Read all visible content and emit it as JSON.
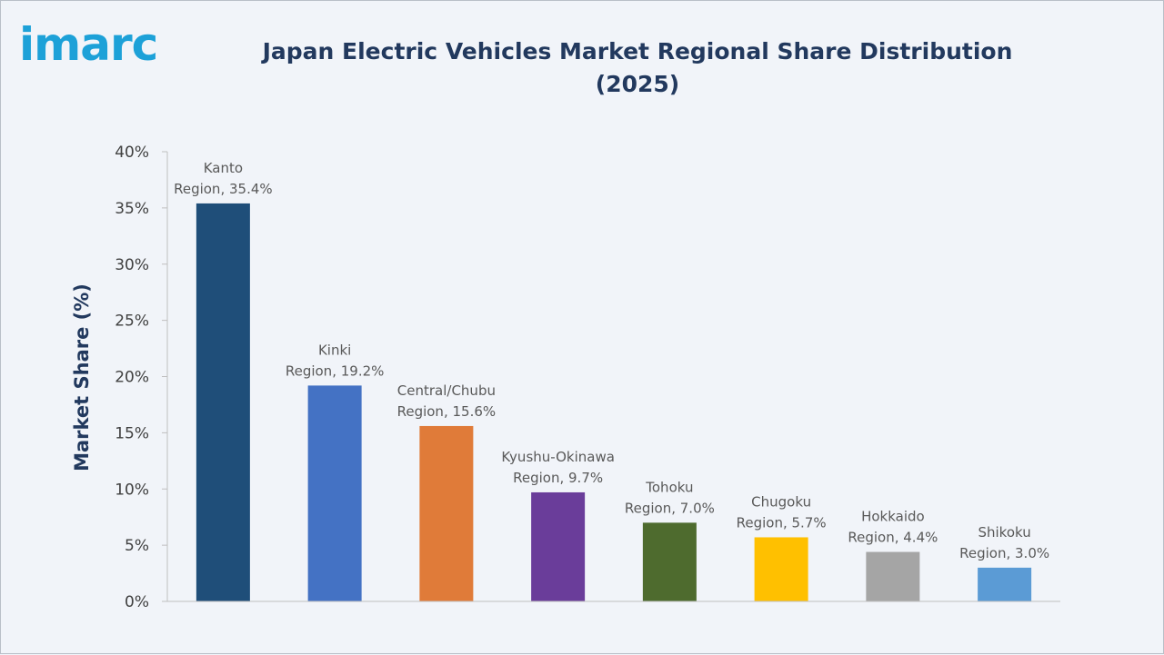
{
  "logo_text": "imarc",
  "title": "Japan Electric Vehicles Market Regional Share Distribution (2025)",
  "chart_data": {
    "type": "bar",
    "title": "Japan Electric Vehicles Market Regional Share Distribution (2025)",
    "xlabel": "",
    "ylabel": "Market Share (%)",
    "ylim": [
      0,
      40
    ],
    "yticks": [
      "0%",
      "5%",
      "10%",
      "15%",
      "20%",
      "25%",
      "30%",
      "35%",
      "40%"
    ],
    "grid": false,
    "legend": "none",
    "categories": [
      "Kanto Region",
      "Kinki Region",
      "Central/Chubu Region",
      "Kyushu-Okinawa Region",
      "Tohoku Region",
      "Chugoku Region",
      "Hokkaido Region",
      "Shikoku Region"
    ],
    "values": [
      35.4,
      19.2,
      15.6,
      9.7,
      7.0,
      5.7,
      4.4,
      3.0
    ],
    "label_lines": [
      [
        "Kanto",
        "Region, 35.4%"
      ],
      [
        "Kinki",
        "Region, 19.2%"
      ],
      [
        "Central/Chubu",
        "Region, 15.6%"
      ],
      [
        "Kyushu-Okinawa",
        "Region, 9.7%"
      ],
      [
        "Tohoku",
        "Region, 7.0%"
      ],
      [
        "Chugoku",
        "Region, 5.7%"
      ],
      [
        "Hokkaido",
        "Region, 4.4%"
      ],
      [
        "Shikoku",
        "Region, 3.0%"
      ]
    ],
    "colors": [
      "#1f4e79",
      "#4472c4",
      "#e07b39",
      "#6a3d9a",
      "#4e6b2e",
      "#ffc000",
      "#a5a5a5",
      "#5b9bd5"
    ]
  }
}
